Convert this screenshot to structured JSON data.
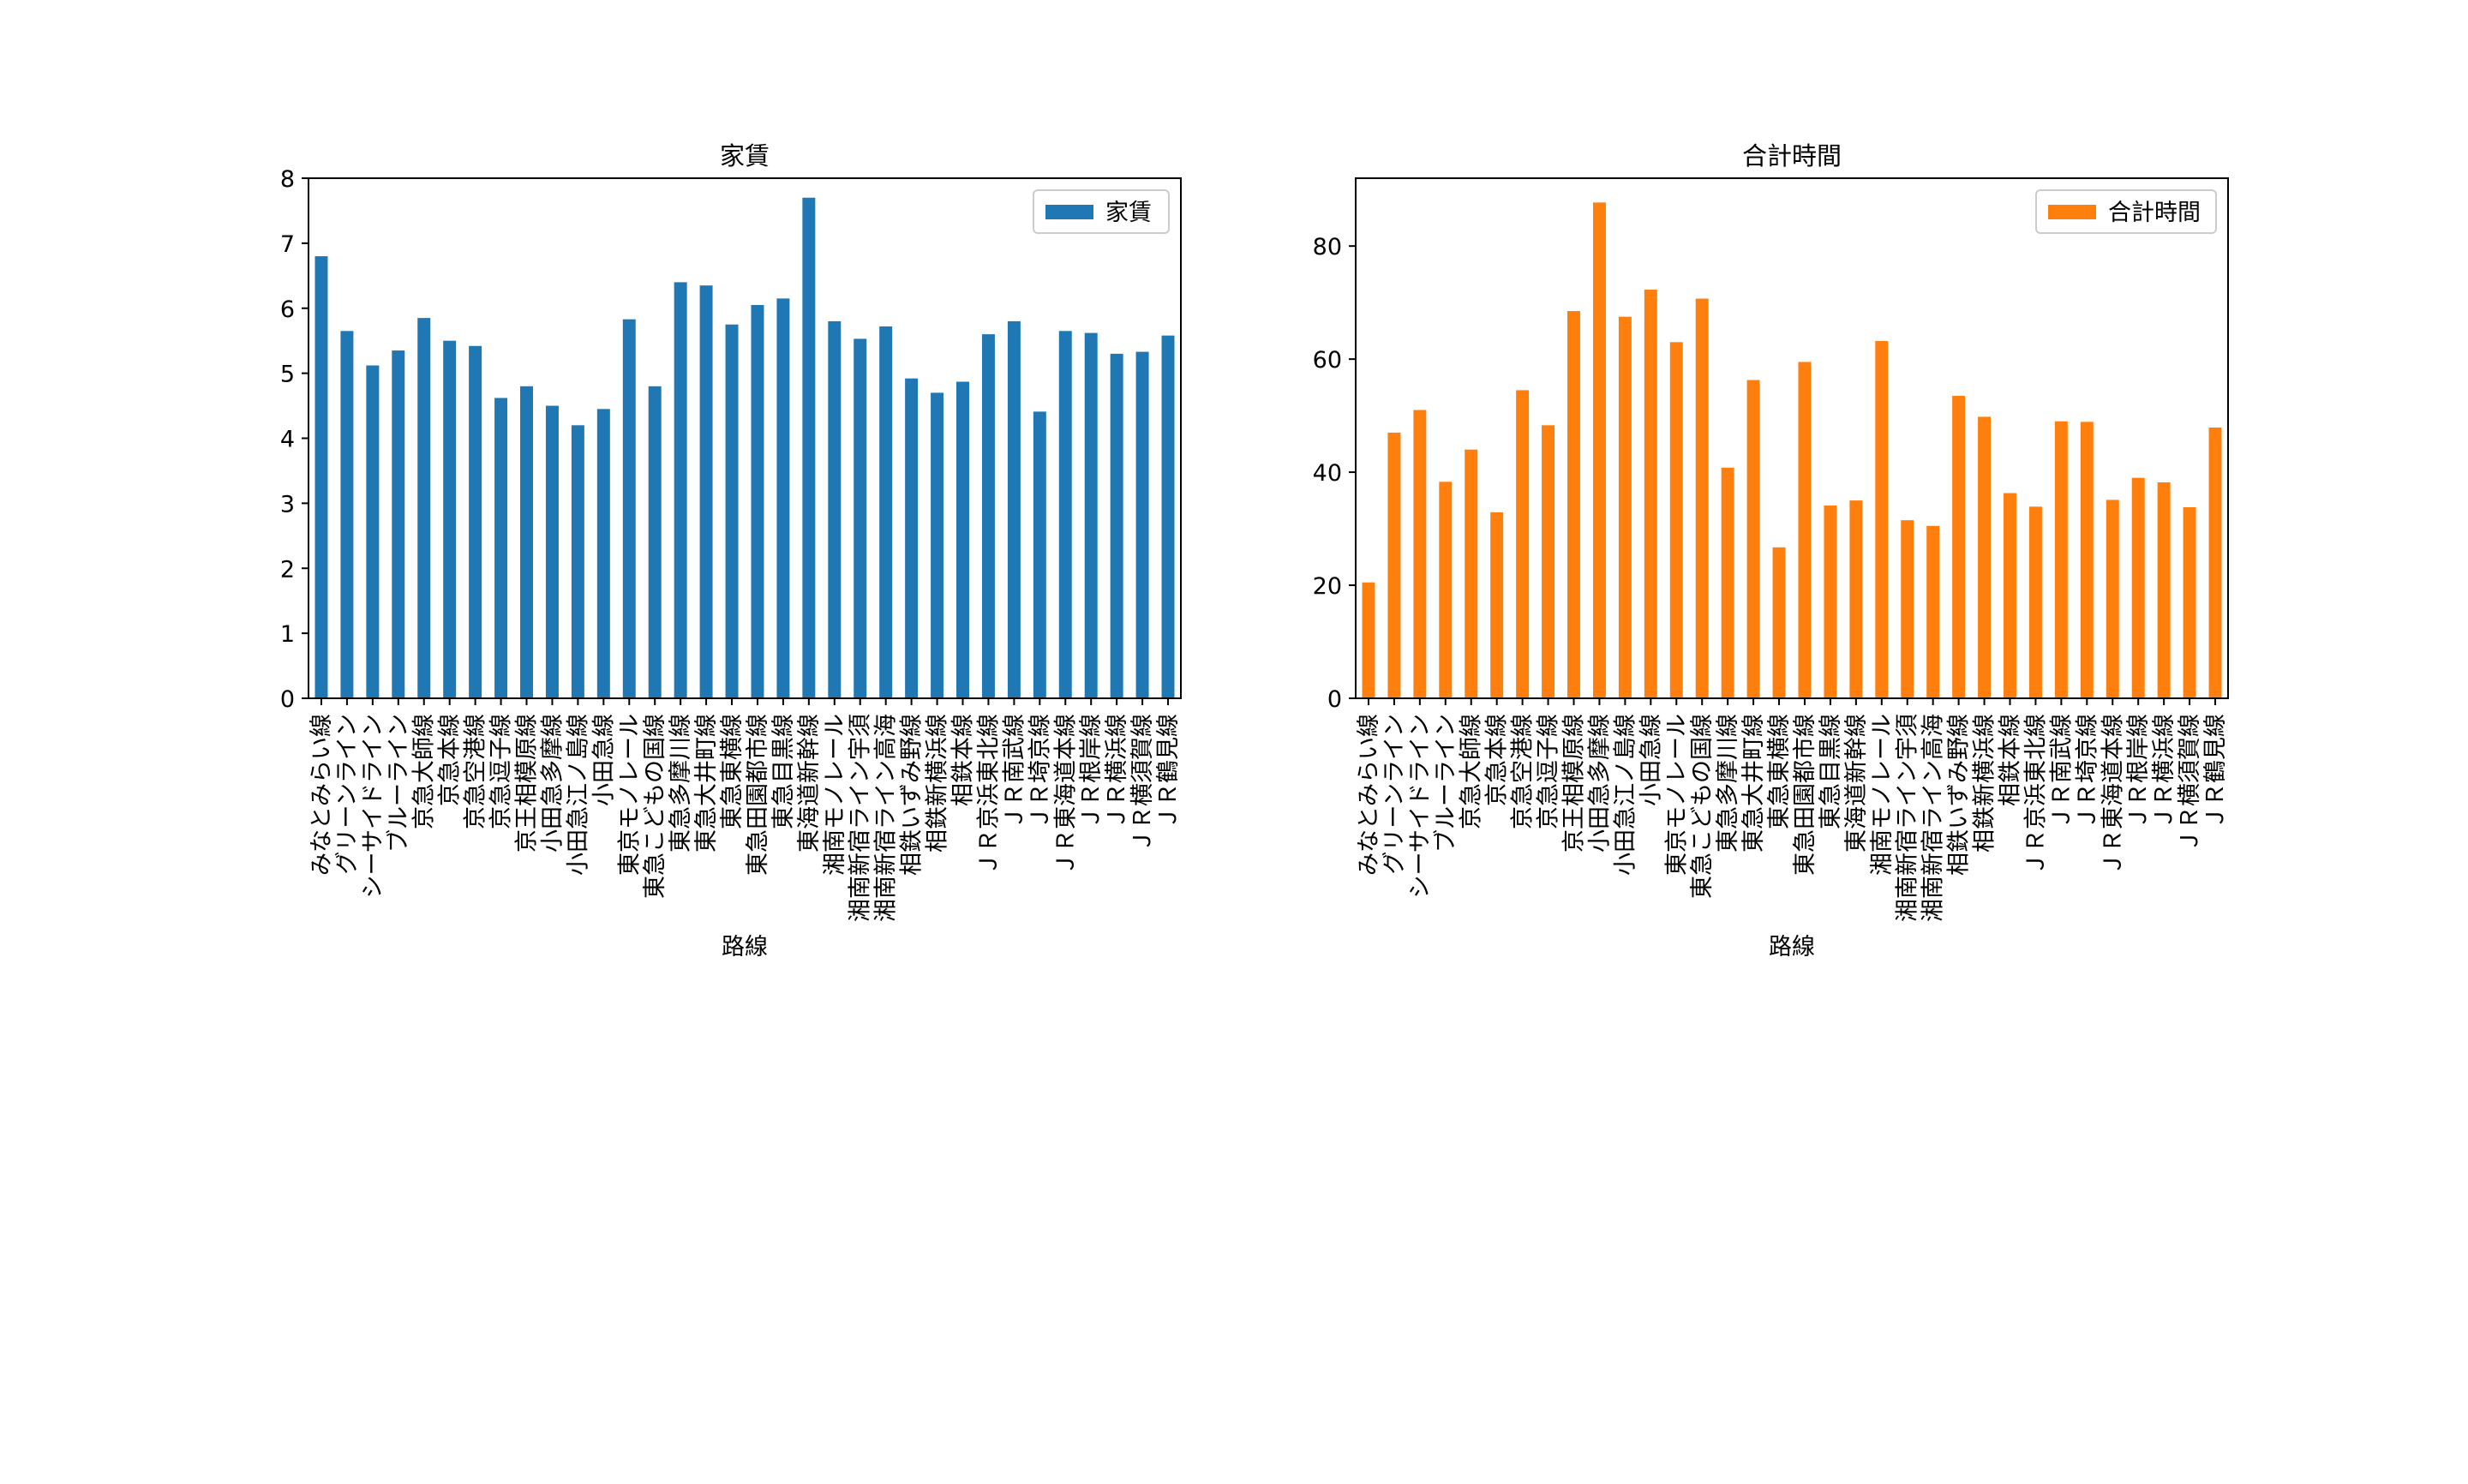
{
  "chart_data": [
    {
      "type": "bar",
      "title": "家賃",
      "xlabel": "路線",
      "ylabel": "",
      "ylim": [
        0,
        8
      ],
      "yticks": [
        0,
        1,
        2,
        3,
        4,
        5,
        6,
        7,
        8
      ],
      "legend": {
        "placement": "top-right",
        "entries": [
          "家賃"
        ]
      },
      "grid": false,
      "color": "#1f77b4",
      "categories": [
        "みなとみらい線",
        "グリーンライン",
        "シーサイドライン",
        "ブルーライン",
        "京急大師線",
        "京急本線",
        "京急空港線",
        "京急逗子線",
        "京王相模原線",
        "小田急多摩線",
        "小田急江ノ島線",
        "小田急線",
        "東京モノレール",
        "東急こどもの国線",
        "東急多摩川線",
        "東急大井町線",
        "東急東横線",
        "東急田園都市線",
        "東急目黒線",
        "東海道新幹線",
        "湘南モノレール",
        "湘南新宿ライン宇須",
        "湘南新宿ライン高海",
        "相鉄いずみ野線",
        "相鉄新横浜線",
        "相鉄本線",
        "ＪＲ京浜東北線",
        "ＪＲ南武線",
        "ＪＲ埼京線",
        "ＪＲ東海道本線",
        "ＪＲ根岸線",
        "ＪＲ横浜線",
        "ＪＲ横須賀線",
        "ＪＲ鶴見線"
      ],
      "series": [
        {
          "name": "家賃",
          "values": [
            6.8,
            5.65,
            5.12,
            5.35,
            5.85,
            5.5,
            5.42,
            4.62,
            4.8,
            4.5,
            4.2,
            4.45,
            5.83,
            4.8,
            6.4,
            6.35,
            5.75,
            6.05,
            6.15,
            7.7,
            5.8,
            5.53,
            5.72,
            4.92,
            4.7,
            4.87,
            5.6,
            5.8,
            4.41,
            5.65,
            5.62,
            5.3,
            5.33,
            5.58
          ]
        }
      ]
    },
    {
      "type": "bar",
      "title": "合計時間",
      "xlabel": "路線",
      "ylabel": "",
      "ylim": [
        0,
        92
      ],
      "yticks": [
        0,
        20,
        40,
        60,
        80
      ],
      "legend": {
        "placement": "top-right",
        "entries": [
          "合計時間"
        ]
      },
      "grid": false,
      "color": "#ff7f0e",
      "categories": [
        "みなとみらい線",
        "グリーンライン",
        "シーサイドライン",
        "ブルーライン",
        "京急大師線",
        "京急本線",
        "京急空港線",
        "京急逗子線",
        "京王相模原線",
        "小田急多摩線",
        "小田急江ノ島線",
        "小田急線",
        "東京モノレール",
        "東急こどもの国線",
        "東急多摩川線",
        "東急大井町線",
        "東急東横線",
        "東急田園都市線",
        "東急目黒線",
        "東海道新幹線",
        "湘南モノレール",
        "湘南新宿ライン宇須",
        "湘南新宿ライン高海",
        "相鉄いずみ野線",
        "相鉄新横浜線",
        "相鉄本線",
        "ＪＲ京浜東北線",
        "ＪＲ南武線",
        "ＪＲ埼京線",
        "ＪＲ東海道本線",
        "ＪＲ根岸線",
        "ＪＲ横浜線",
        "ＪＲ横須賀線",
        "ＪＲ鶴見線"
      ],
      "series": [
        {
          "name": "合計時間",
          "values": [
            20.5,
            47,
            51,
            38.3,
            44,
            32.9,
            54.5,
            48.3,
            68.5,
            87.7,
            67.5,
            72.3,
            63,
            70.7,
            40.8,
            56.3,
            26.7,
            59.5,
            34.1,
            35,
            63.2,
            31.5,
            30.5,
            53.5,
            49.8,
            36.3,
            33.9,
            49,
            48.9,
            35.1,
            39,
            38.2,
            33.8,
            47.9
          ]
        }
      ]
    }
  ]
}
